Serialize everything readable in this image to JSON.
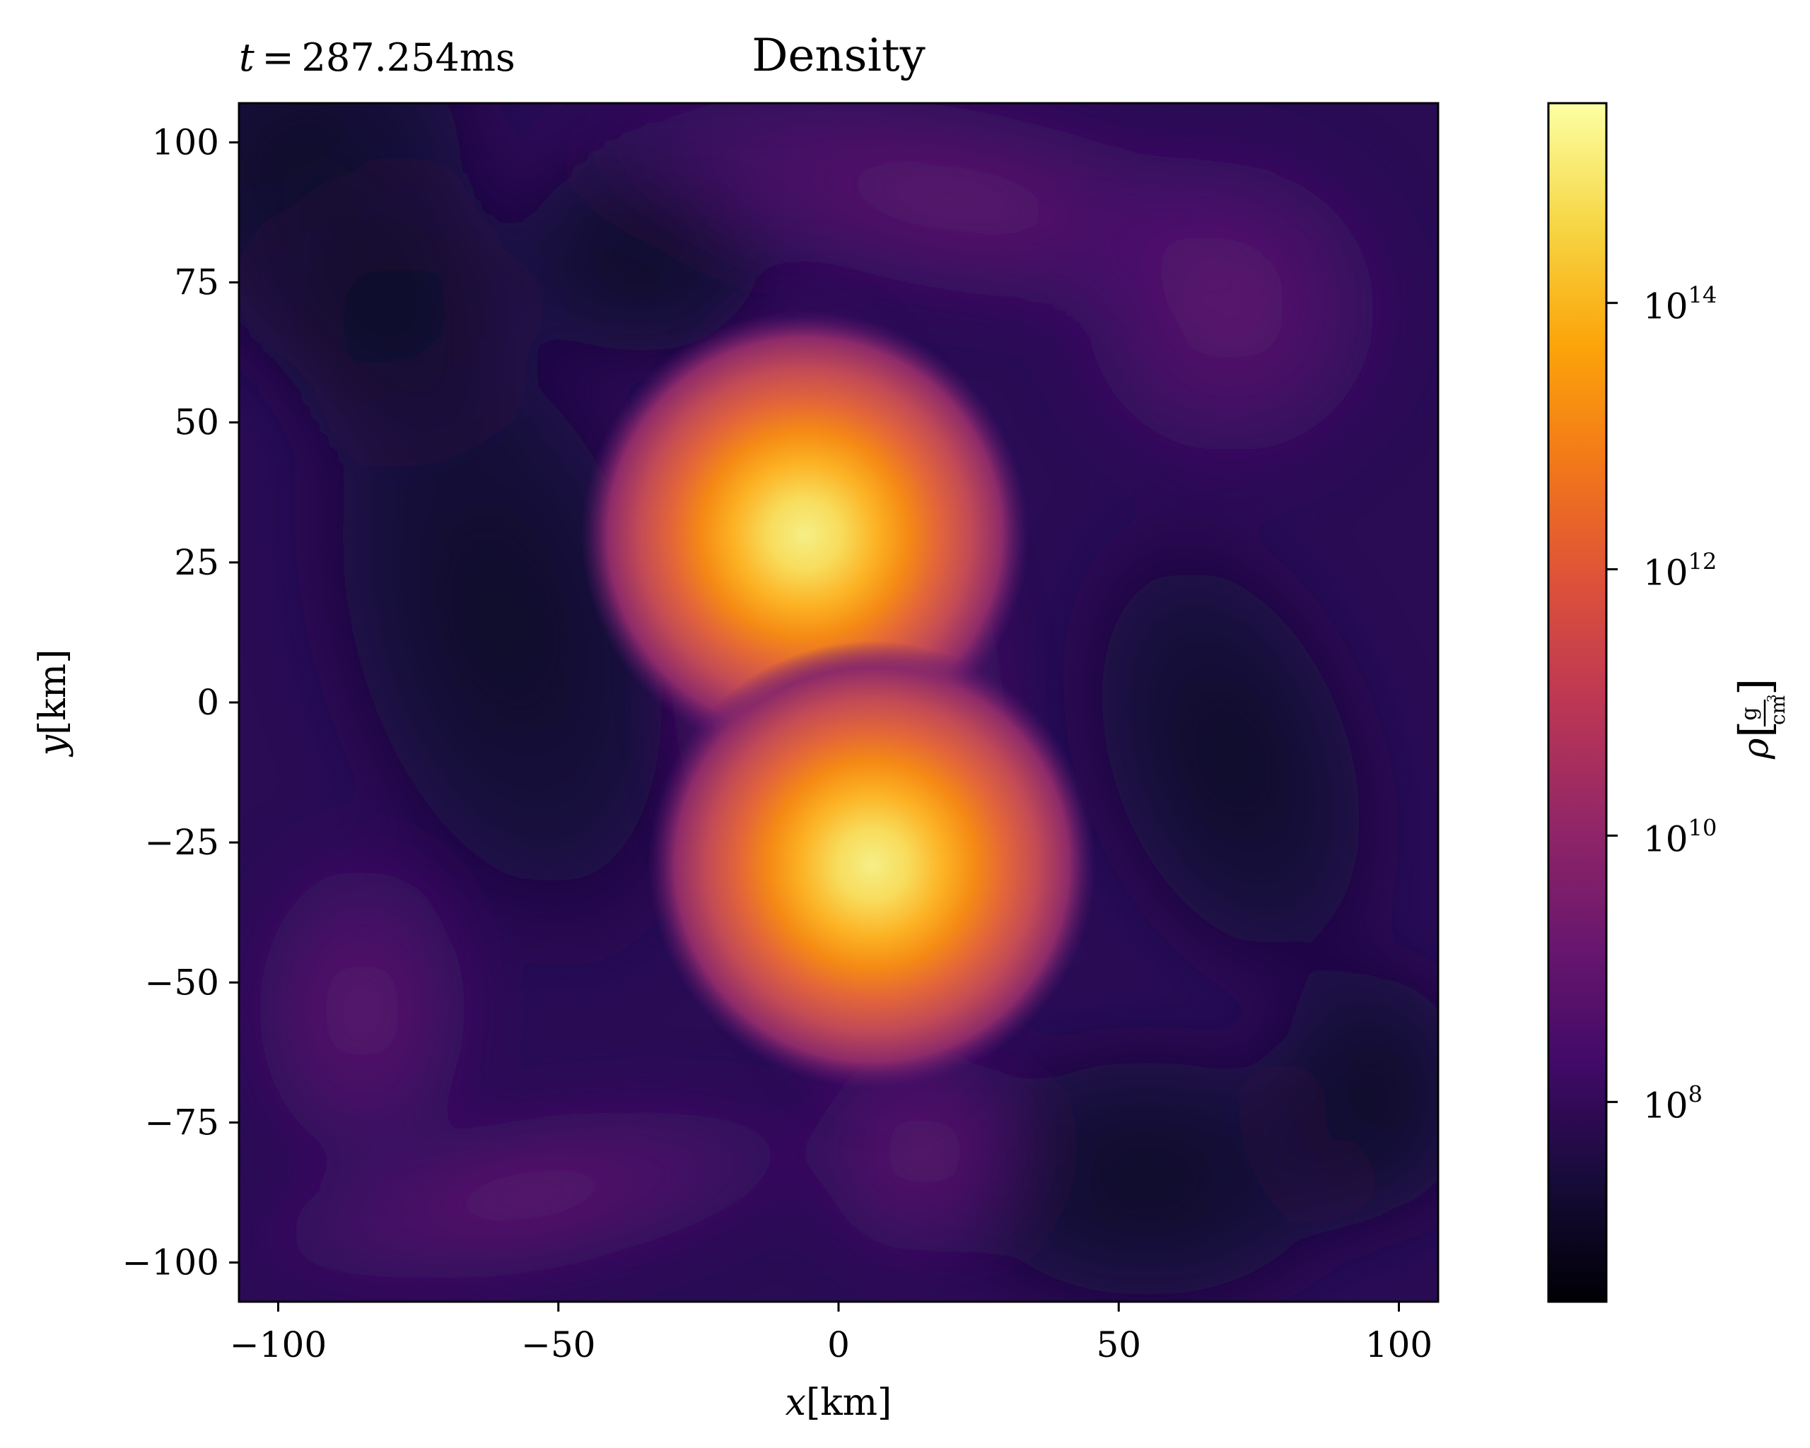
{
  "chart_data": {
    "type": "heatmap",
    "title": "Density",
    "annotation_parts": [
      "t",
      " = ",
      "287.254ms"
    ],
    "xlabel": {
      "var": "x",
      "unit": "[km]"
    },
    "ylabel": {
      "var": "y",
      "unit": "[km]"
    },
    "xlim": [
      -107,
      107
    ],
    "ylim": [
      -107,
      107
    ],
    "x_ticks": [
      -100,
      -50,
      0,
      50,
      100
    ],
    "x_tick_labels": [
      "−100",
      "−50",
      "0",
      "50",
      "100"
    ],
    "y_ticks": [
      100,
      75,
      50,
      25,
      0,
      -25,
      -50,
      -75,
      -100
    ],
    "y_tick_labels": [
      "100",
      "75",
      "50",
      "25",
      "0",
      "−25",
      "−50",
      "−75",
      "−100"
    ],
    "colormap": "inferno",
    "colorbar": {
      "scale": "log",
      "range_log10": [
        6.5,
        15.5
      ],
      "ticks_log10": [
        14,
        12,
        10,
        8
      ],
      "tick_bases": [
        "10",
        "10",
        "10",
        "10"
      ],
      "tick_exponents": [
        "14",
        "12",
        "10",
        "8"
      ],
      "label_symbol": "ρ",
      "label_unit_num": "g",
      "label_unit_den": "cm",
      "label_unit_den_exp": "3"
    },
    "background_log10": 8.3,
    "density_peaks": [
      {
        "x": -6,
        "y": 30,
        "log10_rho": 15.0
      },
      {
        "x": 6,
        "y": -29,
        "log10_rho": 15.1
      }
    ]
  }
}
